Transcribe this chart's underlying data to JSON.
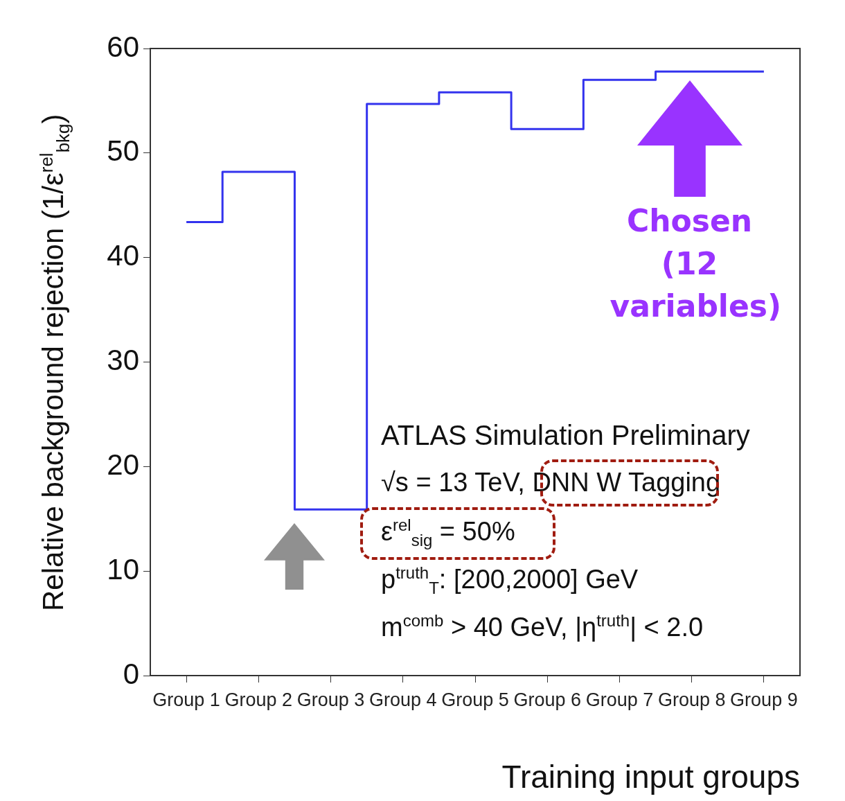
{
  "chart_data": {
    "type": "step",
    "xlabel": "Training input groups",
    "ylabel": "Relative background rejection (1/ε$^{rel}$$_{bkg}$)",
    "categories": [
      "Group 1",
      "Group 2",
      "Group 3",
      "Group 4",
      "Group 5",
      "Group 6",
      "Group 7",
      "Group 8",
      "Group 9"
    ],
    "values": [
      43.4,
      48.2,
      15.9,
      54.7,
      55.8,
      52.3,
      57.0,
      57.8,
      57.8
    ],
    "color": "#3333ee",
    "ylim": [
      0,
      60
    ],
    "yticks": [
      0,
      10,
      20,
      30,
      40,
      50,
      60
    ],
    "legend": false,
    "annotations": [
      "ATLAS Simulation Preliminary",
      "√s = 13 TeV, DNN W Tagging",
      "ε$^{rel}$$_{sig}$ = 50%",
      "p$^{truth}$$_{T}$: [200,2000] GeV",
      "m$^{comb}$ > 40 GeV, |η$^{truth}$| < 2.0",
      "Chosen (12 variables)"
    ]
  }
}
